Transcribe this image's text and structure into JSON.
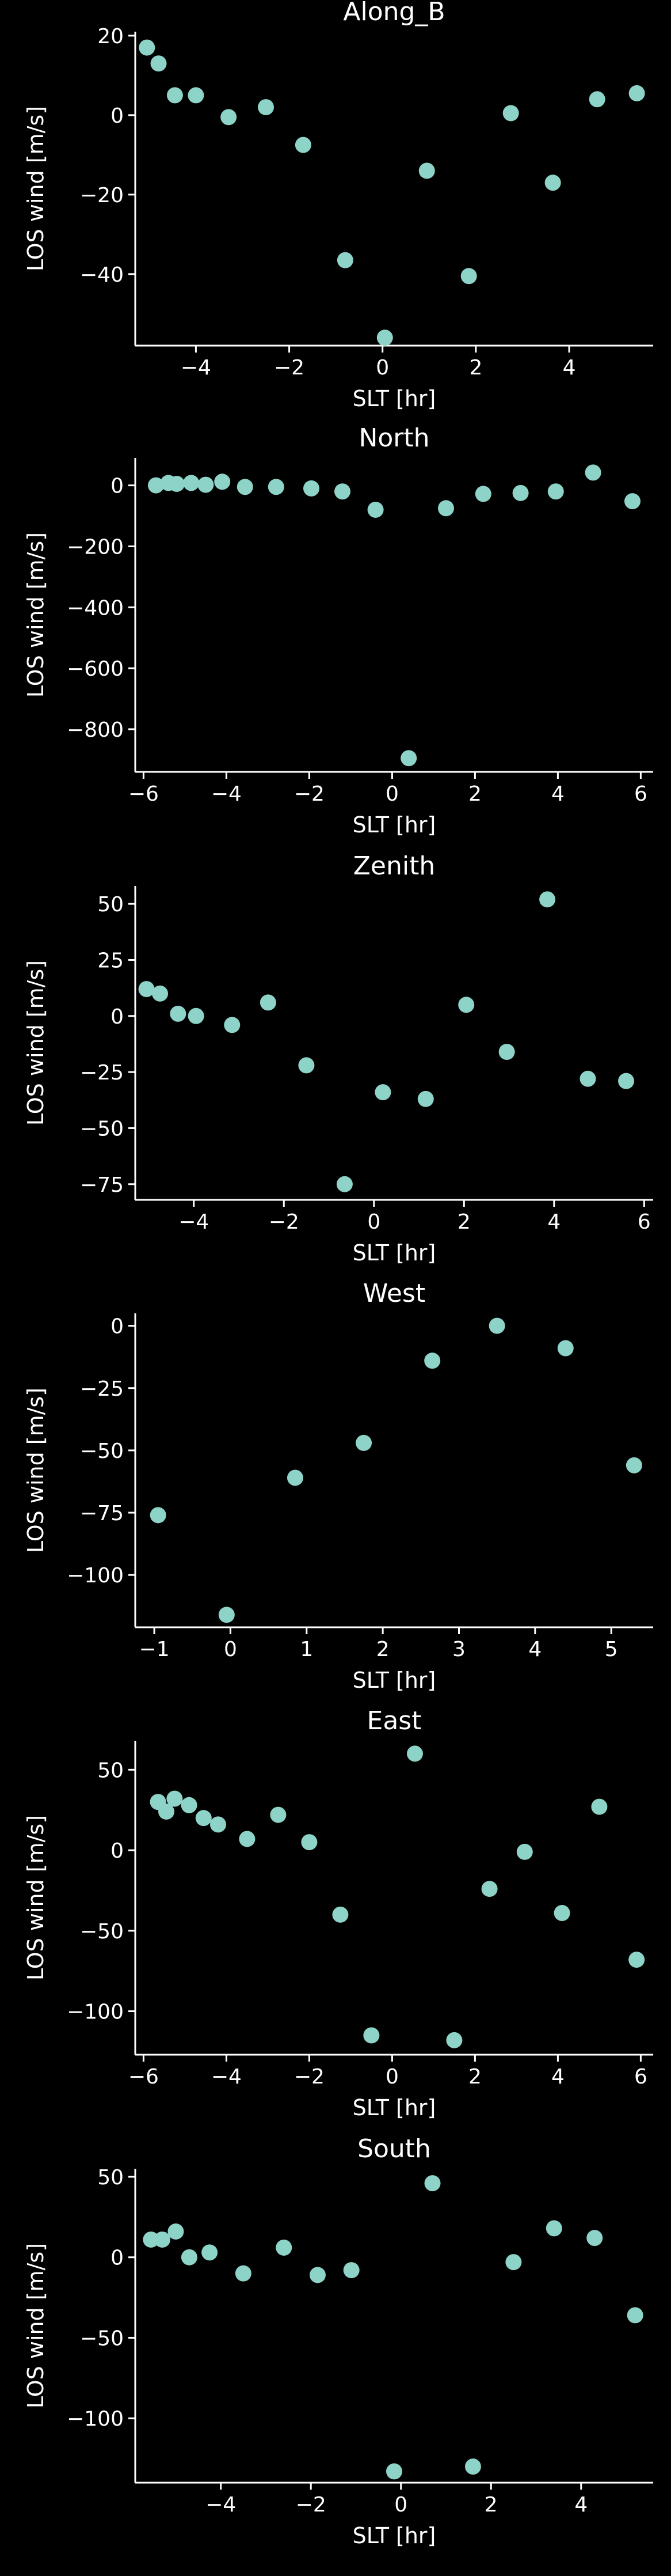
{
  "style": {
    "background": "#000000",
    "foreground": "#ffffff",
    "marker_color": "#8dd3c7"
  },
  "chart_data": [
    {
      "type": "scatter",
      "title": "Along_B",
      "xlabel": "SLT [hr]",
      "ylabel": "LOS wind [m/s]",
      "xlim": [
        -5.3,
        5.8
      ],
      "ylim": [
        -58,
        21
      ],
      "xticks": [
        -4,
        -2,
        0,
        2,
        4
      ],
      "yticks": [
        20,
        0,
        -20,
        -40
      ],
      "grid": false,
      "points": [
        {
          "x": -5.05,
          "y": 17.0
        },
        {
          "x": -4.8,
          "y": 13.0
        },
        {
          "x": -4.45,
          "y": 5.0
        },
        {
          "x": -4.0,
          "y": 5.0
        },
        {
          "x": -3.3,
          "y": -0.5
        },
        {
          "x": -2.5,
          "y": 2.0
        },
        {
          "x": -1.7,
          "y": -7.5
        },
        {
          "x": -0.8,
          "y": -36.5
        },
        {
          "x": 0.05,
          "y": -56.0
        },
        {
          "x": 0.95,
          "y": -14.0
        },
        {
          "x": 1.85,
          "y": -40.5
        },
        {
          "x": 2.75,
          "y": 0.5
        },
        {
          "x": 3.65,
          "y": -17.0
        },
        {
          "x": 4.6,
          "y": 4.0
        },
        {
          "x": 5.45,
          "y": 5.5
        }
      ]
    },
    {
      "type": "scatter",
      "title": "North",
      "xlabel": "SLT [hr]",
      "ylabel": "LOS wind [m/s]",
      "xlim": [
        -6.2,
        6.3
      ],
      "ylim": [
        -940,
        90
      ],
      "xticks": [
        -6,
        -4,
        -2,
        0,
        2,
        4,
        6
      ],
      "yticks": [
        0,
        -200,
        -400,
        -600,
        -800
      ],
      "grid": false,
      "points": [
        {
          "x": -5.7,
          "y": 0
        },
        {
          "x": -5.4,
          "y": 8
        },
        {
          "x": -5.2,
          "y": 5
        },
        {
          "x": -4.85,
          "y": 8
        },
        {
          "x": -4.5,
          "y": 2
        },
        {
          "x": -4.1,
          "y": 12
        },
        {
          "x": -3.55,
          "y": -5
        },
        {
          "x": -2.8,
          "y": -5
        },
        {
          "x": -1.95,
          "y": -10
        },
        {
          "x": -1.2,
          "y": -20
        },
        {
          "x": -0.4,
          "y": -80
        },
        {
          "x": 0.4,
          "y": -895
        },
        {
          "x": 1.3,
          "y": -75
        },
        {
          "x": 2.2,
          "y": -28
        },
        {
          "x": 3.1,
          "y": -25
        },
        {
          "x": 3.95,
          "y": -20
        },
        {
          "x": 4.85,
          "y": 42
        },
        {
          "x": 5.8,
          "y": -52
        }
      ]
    },
    {
      "type": "scatter",
      "title": "Zenith",
      "xlabel": "SLT [hr]",
      "ylabel": "LOS wind [m/s]",
      "xlim": [
        -5.3,
        6.2
      ],
      "ylim": [
        -82,
        58
      ],
      "xticks": [
        -4,
        -2,
        0,
        2,
        4,
        6
      ],
      "yticks": [
        50,
        25,
        0,
        -25,
        -50,
        -75
      ],
      "grid": false,
      "points": [
        {
          "x": -5.05,
          "y": 12
        },
        {
          "x": -4.75,
          "y": 10
        },
        {
          "x": -4.35,
          "y": 1
        },
        {
          "x": -3.95,
          "y": 0
        },
        {
          "x": -3.15,
          "y": -4
        },
        {
          "x": -2.35,
          "y": 6
        },
        {
          "x": -1.5,
          "y": -22
        },
        {
          "x": -0.65,
          "y": -75
        },
        {
          "x": 0.2,
          "y": -34
        },
        {
          "x": 1.15,
          "y": -37
        },
        {
          "x": 2.05,
          "y": 5
        },
        {
          "x": 2.95,
          "y": -16
        },
        {
          "x": 3.85,
          "y": 52
        },
        {
          "x": 4.75,
          "y": -28
        },
        {
          "x": 5.6,
          "y": -29
        }
      ]
    },
    {
      "type": "scatter",
      "title": "West",
      "xlabel": "SLT [hr]",
      "ylabel": "LOS wind [m/s]",
      "xlim": [
        -1.25,
        5.55
      ],
      "ylim": [
        -121,
        5
      ],
      "xticks": [
        -1,
        0,
        1,
        2,
        3,
        4,
        5
      ],
      "yticks": [
        0,
        -25,
        -50,
        -75,
        -100
      ],
      "grid": false,
      "points": [
        {
          "x": -0.95,
          "y": -76
        },
        {
          "x": -0.05,
          "y": -116
        },
        {
          "x": 0.85,
          "y": -61
        },
        {
          "x": 1.75,
          "y": -47
        },
        {
          "x": 2.65,
          "y": -14
        },
        {
          "x": 3.5,
          "y": 0
        },
        {
          "x": 4.4,
          "y": -9
        },
        {
          "x": 5.3,
          "y": -56
        }
      ]
    },
    {
      "type": "scatter",
      "title": "East",
      "xlabel": "SLT [hr]",
      "ylabel": "LOS wind [m/s]",
      "xlim": [
        -6.2,
        6.3
      ],
      "ylim": [
        -127,
        68
      ],
      "xticks": [
        -6,
        -4,
        -2,
        0,
        2,
        4,
        6
      ],
      "yticks": [
        50,
        0,
        -50,
        -100
      ],
      "grid": false,
      "points": [
        {
          "x": -5.65,
          "y": 30
        },
        {
          "x": -5.45,
          "y": 24
        },
        {
          "x": -5.25,
          "y": 32
        },
        {
          "x": -4.9,
          "y": 28
        },
        {
          "x": -4.55,
          "y": 20
        },
        {
          "x": -4.2,
          "y": 16
        },
        {
          "x": -3.5,
          "y": 7
        },
        {
          "x": -2.75,
          "y": 22
        },
        {
          "x": -2.0,
          "y": 5
        },
        {
          "x": -1.25,
          "y": -40
        },
        {
          "x": -0.5,
          "y": -115
        },
        {
          "x": 0.55,
          "y": 60
        },
        {
          "x": 1.5,
          "y": -118
        },
        {
          "x": 2.35,
          "y": -24
        },
        {
          "x": 3.2,
          "y": -1
        },
        {
          "x": 4.1,
          "y": -39
        },
        {
          "x": 5.0,
          "y": 27
        },
        {
          "x": 5.9,
          "y": -68
        }
      ]
    },
    {
      "type": "scatter",
      "title": "South",
      "xlabel": "SLT [hr]",
      "ylabel": "LOS wind [m/s]",
      "xlim": [
        -5.9,
        5.6
      ],
      "ylim": [
        -140,
        55
      ],
      "xticks": [
        -4,
        -2,
        0,
        2,
        4
      ],
      "yticks": [
        50,
        0,
        -50,
        -100
      ],
      "grid": false,
      "points": [
        {
          "x": -5.55,
          "y": 11
        },
        {
          "x": -5.3,
          "y": 11
        },
        {
          "x": -5.0,
          "y": 16
        },
        {
          "x": -4.7,
          "y": 0
        },
        {
          "x": -4.25,
          "y": 3
        },
        {
          "x": -3.5,
          "y": -10
        },
        {
          "x": -2.6,
          "y": 6
        },
        {
          "x": -1.85,
          "y": -11
        },
        {
          "x": -1.1,
          "y": -8
        },
        {
          "x": -0.15,
          "y": -133
        },
        {
          "x": 0.7,
          "y": 46
        },
        {
          "x": 1.6,
          "y": -130
        },
        {
          "x": 2.5,
          "y": -3
        },
        {
          "x": 3.4,
          "y": 18
        },
        {
          "x": 4.3,
          "y": 12
        },
        {
          "x": 5.2,
          "y": -36
        }
      ]
    }
  ]
}
